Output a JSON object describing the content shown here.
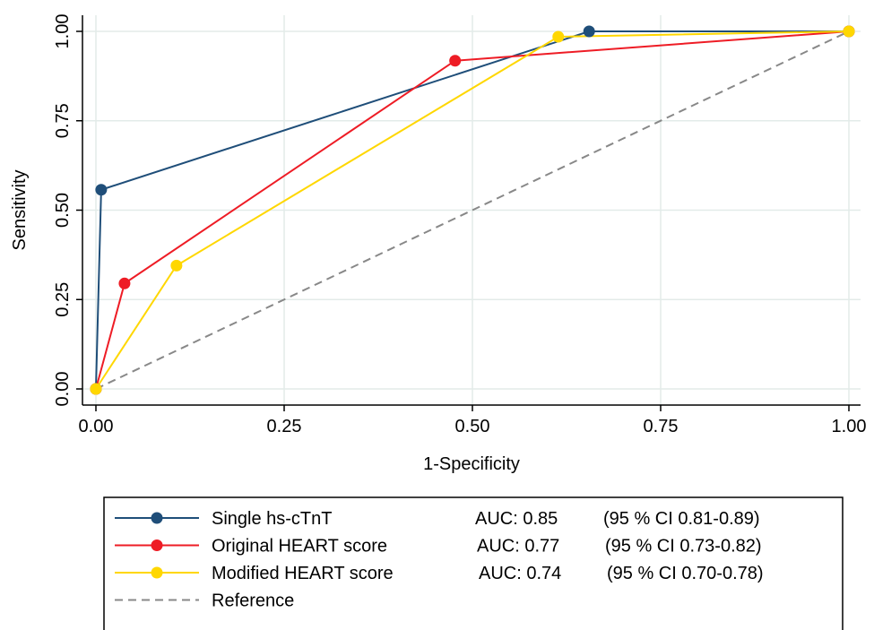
{
  "chart_data": {
    "type": "line",
    "title": "",
    "xlabel": "1-Specificity",
    "ylabel": "Sensitivity",
    "xlim": [
      0,
      1
    ],
    "ylim": [
      0,
      1
    ],
    "xticks": [
      "0.00",
      "0.25",
      "0.50",
      "0.75",
      "1.00"
    ],
    "yticks": [
      "0.00",
      "0.25",
      "0.50",
      "0.75",
      "1.00"
    ],
    "grid": true,
    "legend_position": "bottom",
    "series": [
      {
        "name": "Single hs-cTnT",
        "color": "#1f4e79",
        "auc": "AUC: 0.85",
        "ci": "(95 % CI 0.81-0.89)",
        "x": [
          0,
          0.007,
          0.655,
          1
        ],
        "y": [
          0,
          0.557,
          1,
          1
        ]
      },
      {
        "name": "Original HEART score",
        "color": "#ee1c25",
        "auc": "AUC: 0.77",
        "ci": "(95 % CI 0.73-0.82)",
        "x": [
          0,
          0.038,
          0.477,
          1
        ],
        "y": [
          0,
          0.295,
          0.918,
          1
        ]
      },
      {
        "name": "Modified HEART score",
        "color": "#ffd700",
        "auc": "AUC: 0.74",
        "ci": "(95 % CI 0.70-0.78)",
        "x": [
          0,
          0.107,
          0.614,
          1
        ],
        "y": [
          0,
          0.345,
          0.985,
          1
        ]
      }
    ],
    "reference": {
      "name": "Reference",
      "color": "#888888",
      "x": [
        0,
        1
      ],
      "y": [
        0,
        1
      ]
    }
  }
}
